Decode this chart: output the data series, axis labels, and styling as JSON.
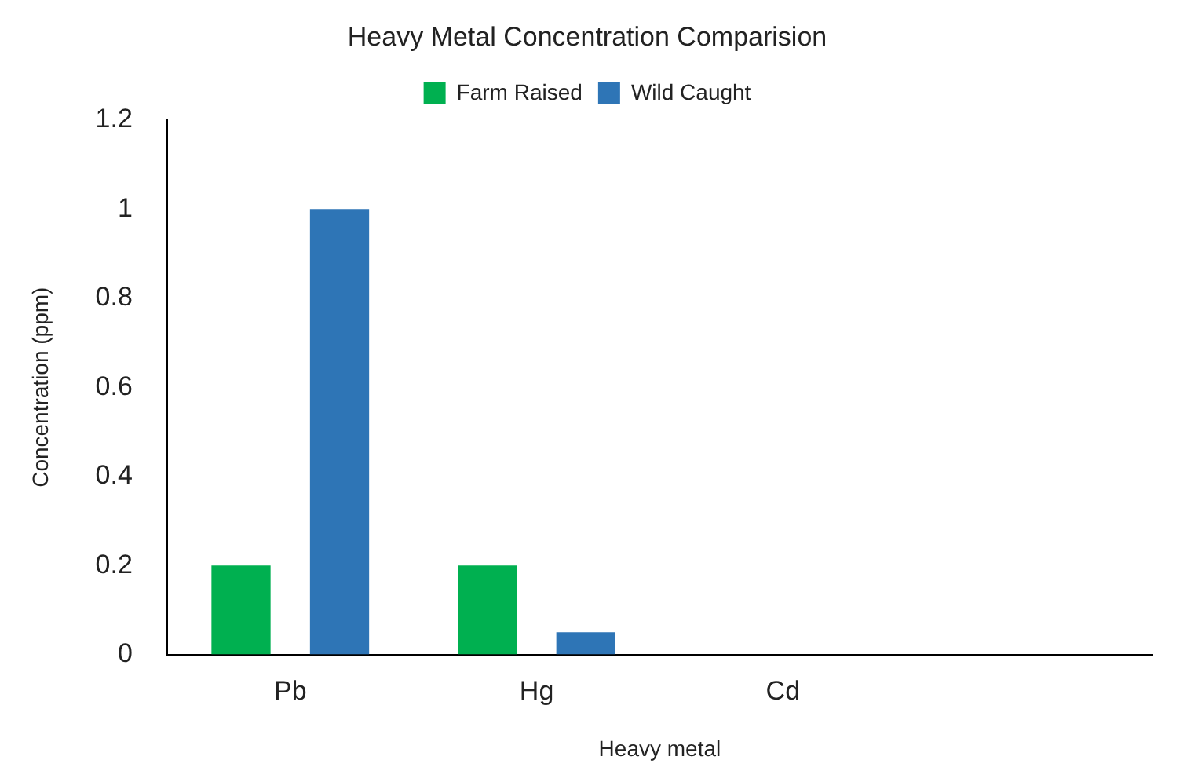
{
  "chart_data": {
    "type": "bar",
    "title": "Heavy Metal Concentration Comparision",
    "xlabel": "Heavy metal",
    "ylabel": "Concentration (ppm)",
    "categories": [
      "Pb",
      "Hg",
      "Cd",
      null
    ],
    "series": [
      {
        "name": "Farm Raised",
        "color": "#00b050",
        "values": [
          0.2,
          0.2,
          0,
          null
        ]
      },
      {
        "name": "Wild Caught",
        "color": "#2e75b6",
        "values": [
          1.0,
          0.05,
          0,
          null
        ]
      }
    ],
    "ylim": [
      0,
      1.2
    ],
    "yticks": [
      0,
      0.2,
      0.4,
      0.6,
      0.8,
      1,
      1.2
    ],
    "grid": false,
    "legend": "top"
  }
}
